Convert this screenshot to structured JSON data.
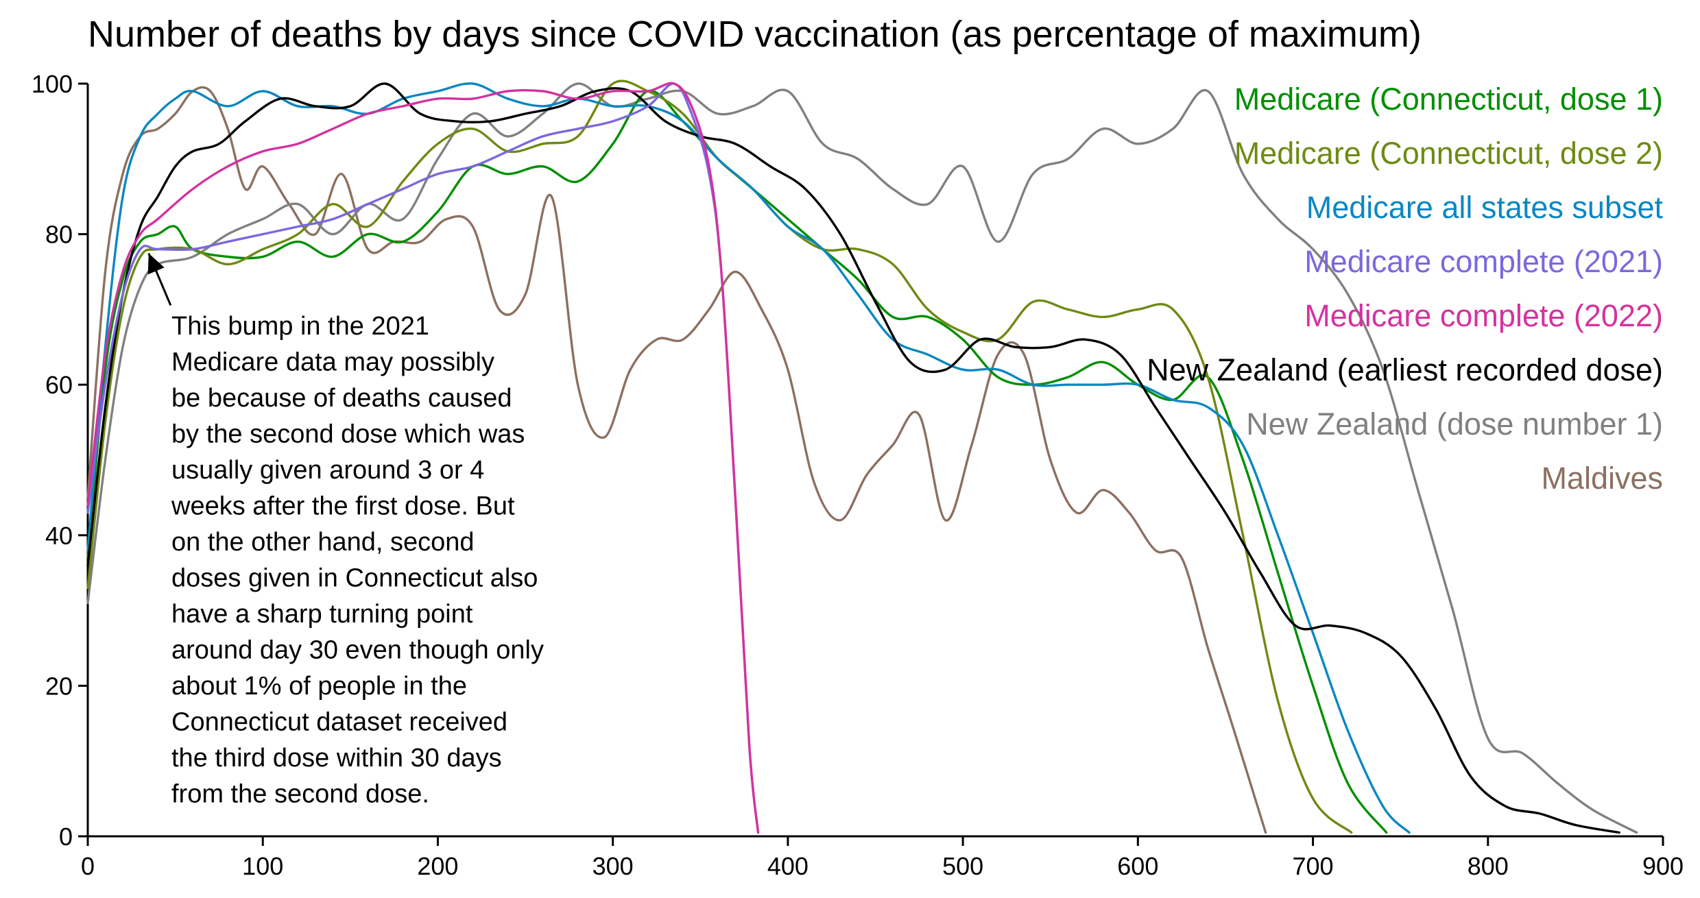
{
  "chart_data": {
    "type": "line",
    "title": "Number of deaths by days since COVID vaccination (as percentage of maximum)",
    "xlabel": "",
    "ylabel": "",
    "xlim": [
      0,
      900
    ],
    "ylim": [
      0,
      100
    ],
    "xticks": [
      0,
      100,
      200,
      300,
      400,
      500,
      600,
      700,
      800,
      900
    ],
    "yticks": [
      0,
      20,
      40,
      60,
      80,
      100
    ],
    "grid": false,
    "legend_position": "right",
    "series": [
      {
        "name": "Medicare (Connecticut, dose 1)",
        "color": "#008f00",
        "x": [
          0,
          10,
          20,
          30,
          40,
          50,
          60,
          80,
          100,
          120,
          140,
          160,
          180,
          200,
          220,
          240,
          260,
          280,
          300,
          320,
          340,
          360,
          380,
          400,
          420,
          440,
          460,
          480,
          500,
          520,
          540,
          560,
          580,
          600,
          620,
          640,
          660,
          680,
          700,
          720,
          742
        ],
        "y": [
          37,
          62,
          74,
          79,
          80,
          81,
          78,
          77,
          77,
          79,
          77,
          80,
          79,
          83,
          89,
          88,
          89,
          87,
          92,
          99,
          95,
          90,
          86,
          82,
          78,
          74,
          69,
          69,
          66,
          61,
          60,
          61,
          63,
          60,
          58,
          61,
          50,
          35,
          20,
          7,
          0.5
        ]
      },
      {
        "name": "Medicare (Connecticut, dose 2)",
        "color": "#6e8a12",
        "x": [
          0,
          10,
          20,
          30,
          40,
          60,
          80,
          100,
          120,
          140,
          160,
          180,
          200,
          220,
          240,
          260,
          280,
          300,
          320,
          340,
          360,
          380,
          400,
          420,
          440,
          460,
          480,
          500,
          520,
          540,
          560,
          580,
          600,
          620,
          640,
          660,
          680,
          700,
          722
        ],
        "y": [
          33,
          55,
          70,
          77,
          78,
          78,
          76,
          78,
          80,
          84,
          81,
          87,
          92,
          94,
          91,
          92,
          93,
          100,
          99,
          96,
          90,
          86,
          81,
          78,
          78,
          76,
          70,
          67,
          66,
          71,
          70,
          69,
          70,
          70,
          61,
          40,
          18,
          5,
          0.5
        ]
      },
      {
        "name": "Medicare all states subset",
        "color": "#0a87c2",
        "x": [
          0,
          10,
          20,
          30,
          40,
          50,
          60,
          80,
          100,
          120,
          140,
          160,
          180,
          200,
          220,
          240,
          260,
          280,
          300,
          320,
          340,
          360,
          380,
          400,
          420,
          440,
          460,
          480,
          500,
          520,
          540,
          560,
          580,
          600,
          620,
          640,
          660,
          680,
          700,
          720,
          740,
          755
        ],
        "y": [
          38,
          65,
          85,
          93,
          96,
          98,
          99,
          97,
          99,
          97,
          97,
          96,
          98,
          99,
          100,
          98,
          97,
          98,
          97,
          97,
          95,
          90,
          86,
          81,
          78,
          72,
          66,
          64,
          62,
          62,
          60,
          60,
          60,
          60,
          58,
          57,
          52,
          40,
          27,
          14,
          4,
          0.5
        ]
      },
      {
        "name": "Medicare complete (2021)",
        "color": "#7b68dd",
        "x": [
          0,
          10,
          20,
          30,
          40,
          60,
          80,
          100,
          120,
          140,
          160,
          180,
          200,
          220,
          240,
          260,
          280,
          300,
          320,
          335,
          345,
          355,
          362,
          370,
          378,
          383
        ],
        "y": [
          43,
          60,
          72,
          78,
          78,
          78,
          79,
          80,
          81,
          82,
          84,
          86,
          88,
          89,
          91,
          93,
          94,
          95,
          97,
          100,
          96,
          88,
          75,
          45,
          12,
          0.5
        ]
      },
      {
        "name": "Medicare complete (2022)",
        "color": "#d332a0",
        "x": [
          0,
          10,
          20,
          30,
          40,
          60,
          80,
          100,
          120,
          140,
          160,
          180,
          200,
          220,
          240,
          260,
          280,
          300,
          320,
          335,
          345,
          355,
          362,
          370,
          378,
          383
        ],
        "y": [
          44,
          64,
          75,
          80,
          82,
          86,
          89,
          91,
          92,
          94,
          96,
          97,
          98,
          98,
          99,
          99,
          98,
          99,
          99,
          100,
          97,
          89,
          75,
          45,
          12,
          0.5
        ]
      },
      {
        "name": "New Zealand (earliest recorded dose)",
        "color": "#000000",
        "x": [
          0,
          10,
          20,
          30,
          40,
          50,
          60,
          75,
          90,
          110,
          130,
          150,
          170,
          190,
          210,
          230,
          250,
          270,
          290,
          310,
          330,
          350,
          370,
          390,
          410,
          430,
          450,
          470,
          490,
          510,
          530,
          550,
          570,
          590,
          610,
          630,
          650,
          670,
          690,
          710,
          730,
          750,
          770,
          790,
          810,
          830,
          850,
          875
        ],
        "y": [
          36,
          57,
          72,
          81,
          85,
          89,
          91,
          92,
          95,
          98,
          97,
          97,
          100,
          96,
          95,
          95,
          96,
          97,
          99,
          99,
          95,
          93,
          92,
          89,
          86,
          80,
          71,
          63,
          62,
          66,
          65,
          65,
          66,
          64,
          57,
          50,
          43,
          35,
          28,
          28,
          27,
          24,
          17,
          8,
          4,
          3,
          1.5,
          0.5
        ]
      },
      {
        "name": "New Zealand (dose number 1)",
        "color": "#808080",
        "x": [
          0,
          10,
          20,
          30,
          40,
          60,
          80,
          100,
          120,
          140,
          160,
          180,
          200,
          220,
          240,
          260,
          280,
          300,
          320,
          340,
          360,
          380,
          400,
          420,
          440,
          460,
          480,
          500,
          520,
          540,
          560,
          580,
          600,
          620,
          640,
          660,
          680,
          700,
          720,
          740,
          760,
          780,
          800,
          820,
          840,
          860,
          885
        ],
        "y": [
          31,
          50,
          65,
          73,
          76,
          77,
          80,
          82,
          84,
          80,
          84,
          82,
          90,
          96,
          93,
          96,
          100,
          97,
          98,
          99,
          96,
          97,
          99,
          92,
          90,
          86,
          84,
          89,
          79,
          88,
          90,
          94,
          92,
          94,
          99,
          88,
          82,
          78,
          72,
          62,
          46,
          30,
          13,
          11,
          7,
          3.5,
          0.5
        ]
      },
      {
        "name": "Maldives",
        "color": "#8c7060",
        "x": [
          0,
          10,
          20,
          30,
          40,
          50,
          60,
          70,
          80,
          90,
          100,
          115,
          130,
          145,
          160,
          175,
          190,
          205,
          220,
          235,
          250,
          265,
          280,
          295,
          310,
          325,
          340,
          355,
          370,
          385,
          400,
          415,
          430,
          445,
          460,
          475,
          490,
          505,
          520,
          535,
          550,
          565,
          580,
          595,
          610,
          625,
          640,
          655,
          673
        ],
        "y": [
          45,
          75,
          88,
          93,
          94,
          96,
          99,
          99,
          94,
          86,
          89,
          84,
          80,
          88,
          78,
          79,
          79,
          82,
          81,
          70,
          72,
          85,
          60,
          53,
          62,
          66,
          66,
          70,
          75,
          70,
          62,
          47,
          42,
          48,
          52,
          56,
          42,
          52,
          64,
          64,
          50,
          43,
          46,
          43,
          38,
          37,
          25,
          14,
          0.5
        ]
      }
    ],
    "annotations": [
      {
        "text_lines": [
          "This bump in the 2021",
          "Medicare data may possibly",
          "be because of deaths caused",
          "by the second dose which was",
          "usually given around 3 or 4",
          "weeks after the first dose. But",
          "on the other hand, second",
          "doses given in Connecticut also",
          "have a sharp turning point",
          "around day 30 even though only",
          "about 1% of people in the",
          "Connecticut dataset received",
          "the third dose within 30 days",
          "from the second dose."
        ],
        "arrow_to": [
          34,
          78
        ],
        "arrow_from": [
          45,
          70
        ]
      }
    ]
  }
}
